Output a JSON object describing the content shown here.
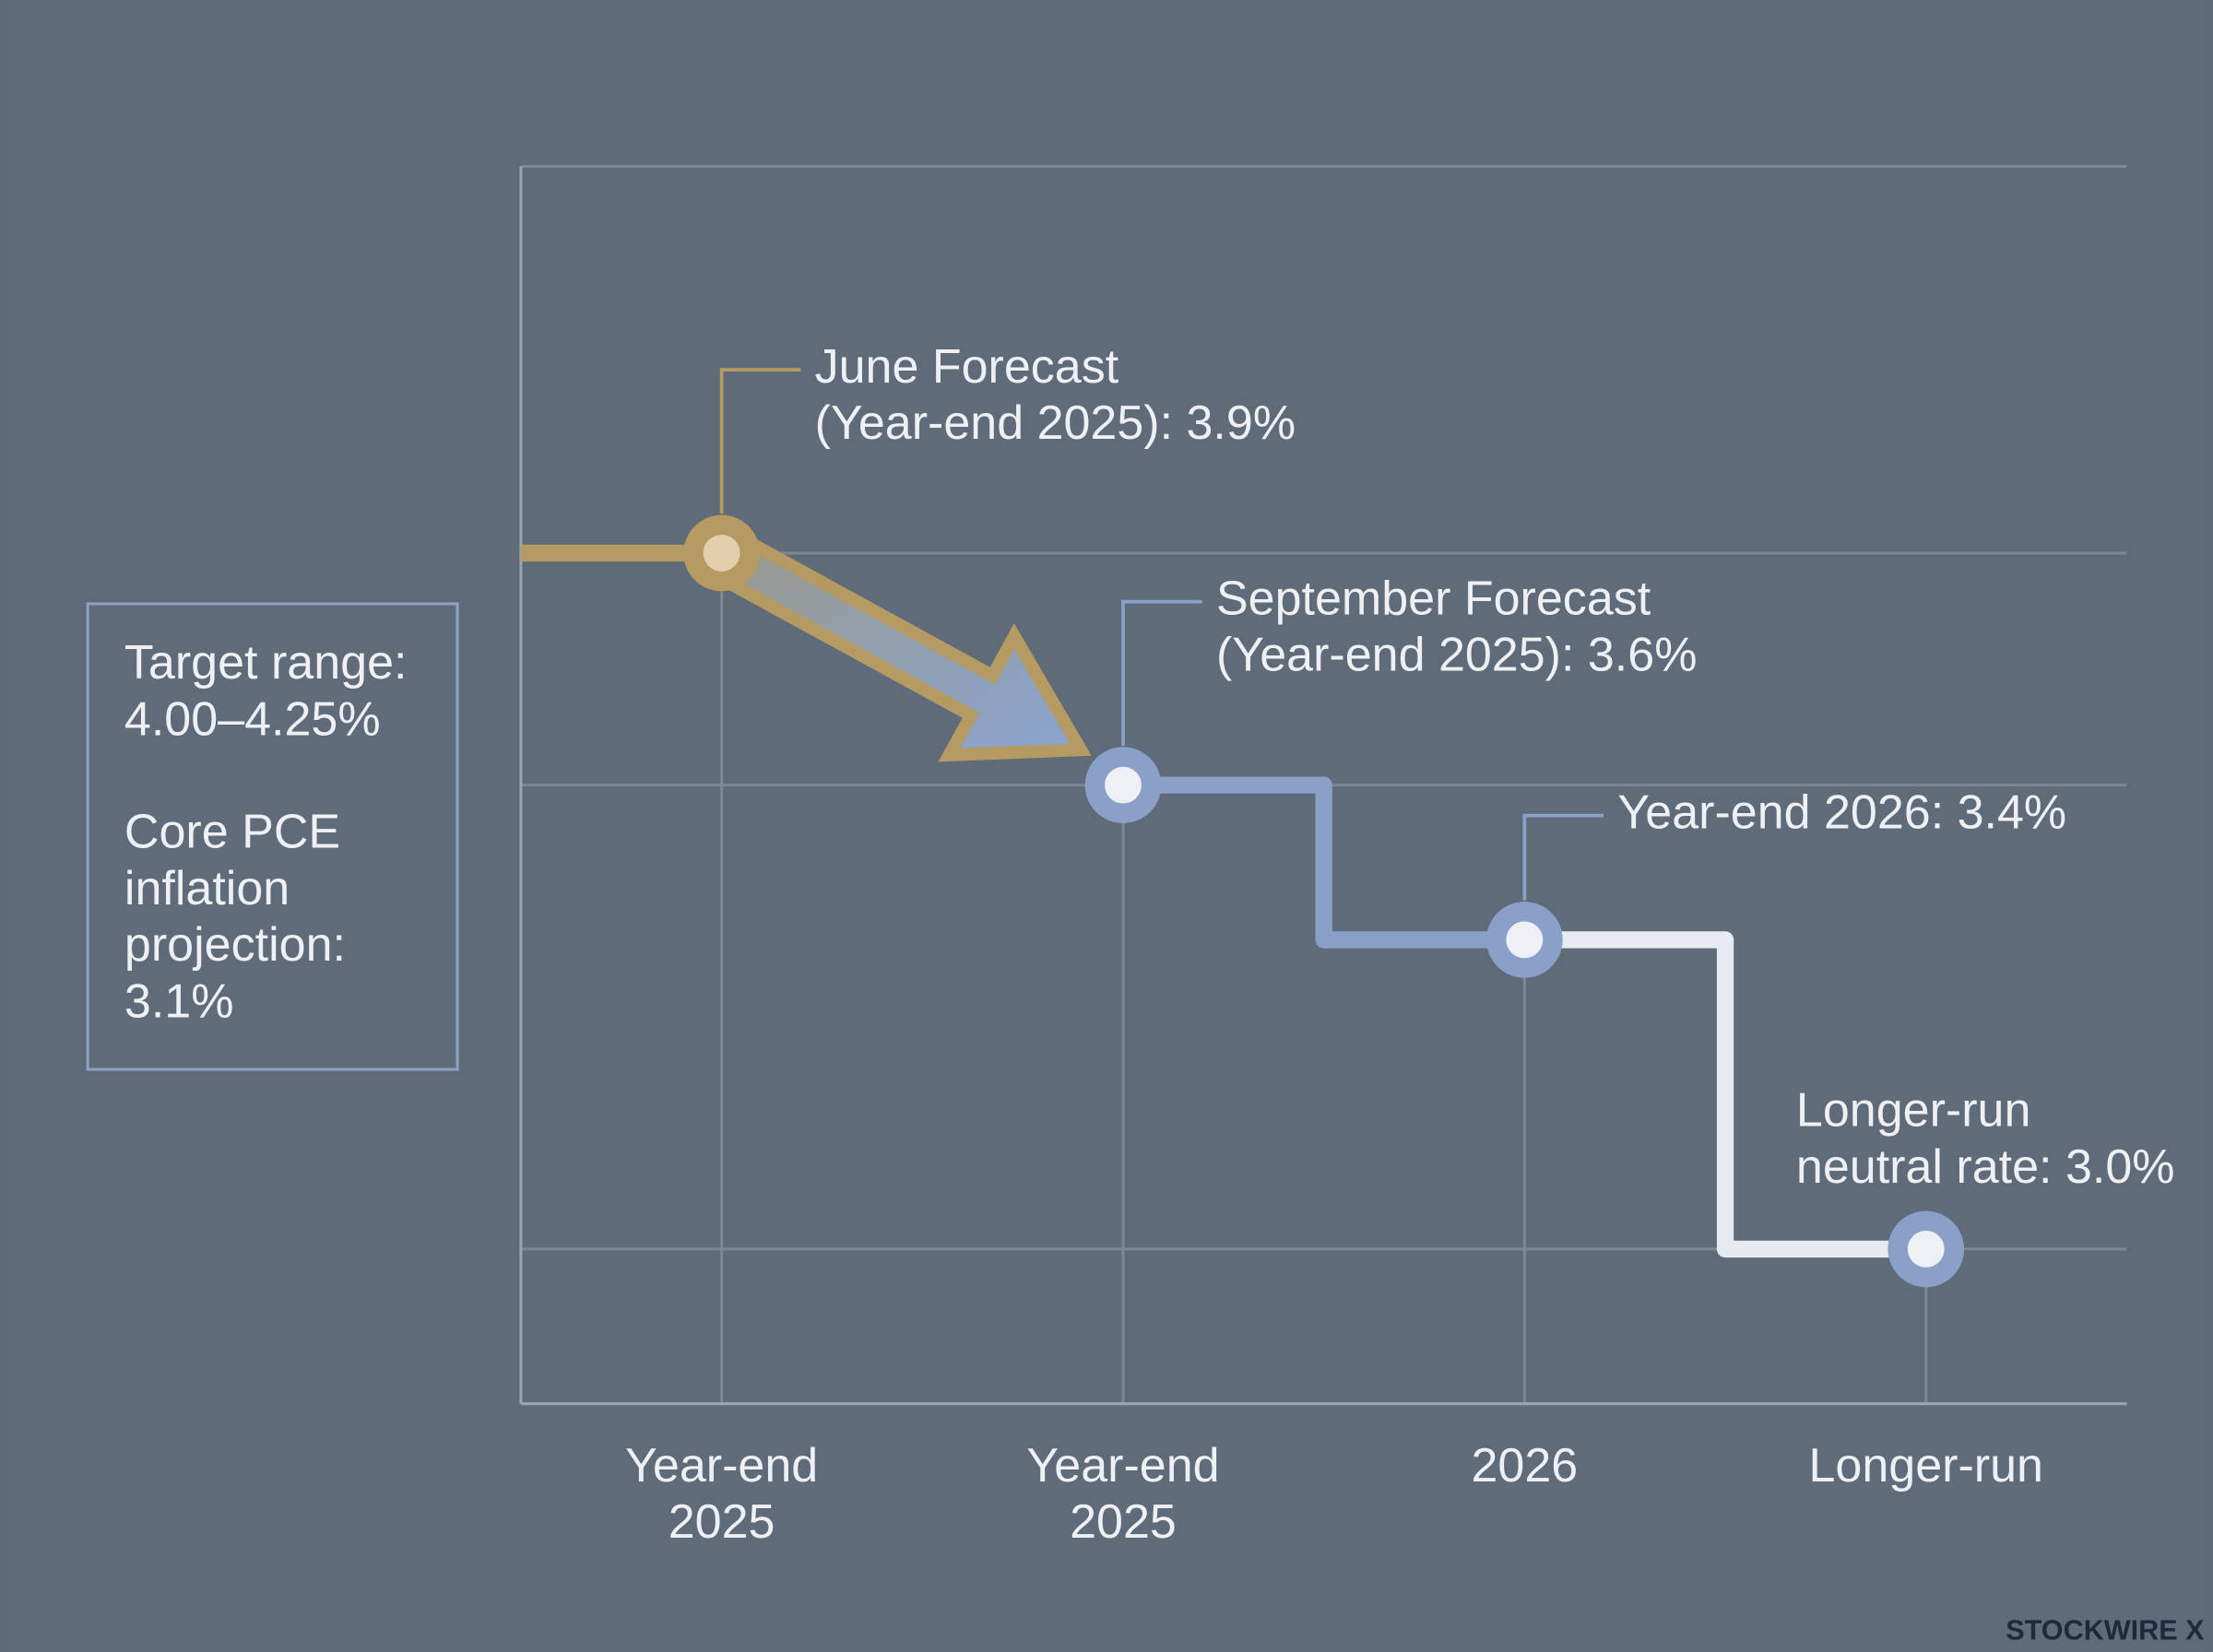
{
  "chart_data": {
    "type": "step",
    "categories": [
      "Year-end 2025",
      "Year-end 2025",
      "2026",
      "Longer-run"
    ],
    "values": [
      3.9,
      3.6,
      3.4,
      3.0
    ],
    "colors": [
      "#b59a62",
      "#8aa0c8",
      "#8aa0c8",
      "#8aa0c8"
    ],
    "line_colors": [
      "#b59a62",
      "#8aa0c8",
      "#e6eaf1"
    ],
    "ylim": [
      2.8,
      4.4
    ],
    "yticks": [
      3.0,
      3.6,
      3.9
    ],
    "grid": true,
    "annotations": [
      {
        "lines": [
          "June Forecast",
          "(Year-end 2025): 3.9%"
        ]
      },
      {
        "lines": [
          "September Forecast",
          "(Year-end 2025): 3.6%"
        ]
      },
      {
        "lines": [
          "Year-end 2026: 3.4%"
        ]
      },
      {
        "lines": [
          "Longer-run",
          "neutral rate: 3.0%"
        ]
      }
    ],
    "info_box": [
      "Target range: 4.00–4.25%",
      "Core PCE inflation projection: 3.1%"
    ],
    "watermark": "STOCKWIRE X"
  }
}
